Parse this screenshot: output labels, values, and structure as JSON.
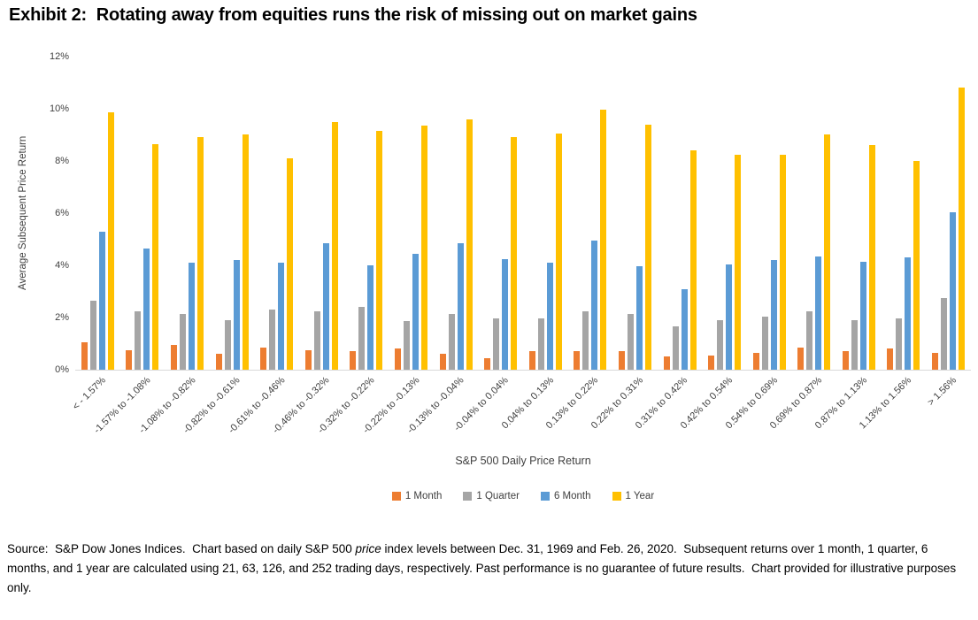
{
  "title": "Exhibit 2:  Rotating away from equities runs the risk of missing out on market gains",
  "chart_data": {
    "type": "bar",
    "title": "Exhibit 2:  Rotating away from equities runs the risk of missing out on market gains",
    "xlabel": "S&P 500 Daily Price Return",
    "ylabel": "Average Subsequent Price Return",
    "ylim": [
      0,
      12
    ],
    "ytick_labels": [
      "0%",
      "2%",
      "4%",
      "6%",
      "8%",
      "10%",
      "12%"
    ],
    "grid": false,
    "legend_position": "bottom",
    "axis_line_color": "#d9d9d9",
    "categories": [
      "< - 1.57%",
      "-1.57% to -1.08%",
      "-1.08% to -0.82%",
      "-0.82% to -0.61%",
      "-0.61% to -0.46%",
      "-0.46% to -0.32%",
      "-0.32% to -0.22%",
      "-0.22% to -0.13%",
      "-0.13% to -0.04%",
      "-0.04% to 0.04%",
      "0.04% to 0.13%",
      "0.13% to 0.22%",
      "0.22% to 0.31%",
      "0.31% to 0.42%",
      "0.42% to 0.54%",
      "0.54% to 0.69%",
      "0.69% to 0.87%",
      "0.87% to 1.13%",
      "1.13% to 1.56%",
      "> 1.56%"
    ],
    "series": [
      {
        "name": "1 Month",
        "color": "#ED7D31",
        "values": [
          1.05,
          0.75,
          0.95,
          0.6,
          0.85,
          0.75,
          0.7,
          0.8,
          0.6,
          0.45,
          0.7,
          0.7,
          0.7,
          0.5,
          0.55,
          0.65,
          0.85,
          0.7,
          0.8,
          0.65
        ]
      },
      {
        "name": "1 Quarter",
        "color": "#A5A5A5",
        "values": [
          2.65,
          2.25,
          2.15,
          1.9,
          2.3,
          2.25,
          2.4,
          1.85,
          2.15,
          1.95,
          1.95,
          2.25,
          2.15,
          1.65,
          1.9,
          2.05,
          2.25,
          1.9,
          1.95,
          2.75
        ]
      },
      {
        "name": "6 Month",
        "color": "#5B9BD5",
        "values": [
          5.3,
          4.65,
          4.1,
          4.2,
          4.1,
          4.85,
          4.0,
          4.45,
          4.85,
          4.25,
          4.1,
          4.95,
          3.95,
          3.1,
          4.05,
          4.2,
          4.35,
          4.15,
          4.3,
          6.05
        ]
      },
      {
        "name": "1 Year",
        "color": "#FFC000",
        "values": [
          9.85,
          8.65,
          8.9,
          9.0,
          8.1,
          9.5,
          9.15,
          9.35,
          9.6,
          8.9,
          9.05,
          9.95,
          9.4,
          8.4,
          8.25,
          8.25,
          9.0,
          8.6,
          8.0,
          10.8
        ]
      }
    ]
  },
  "source_note": {
    "prefix": "Source:  S&P Dow Jones Indices.  Chart based on daily S&P 500 ",
    "italic": "price",
    "suffix": " index levels between Dec. 31, 1969 and Feb. 26, 2020.  Subsequent returns over 1 month, 1 quarter, 6 months, and 1 year are calculated using 21, 63, 126, and 252 trading days, respectively. Past performance is no guarantee of future results.  Chart provided for illustrative purposes only."
  }
}
